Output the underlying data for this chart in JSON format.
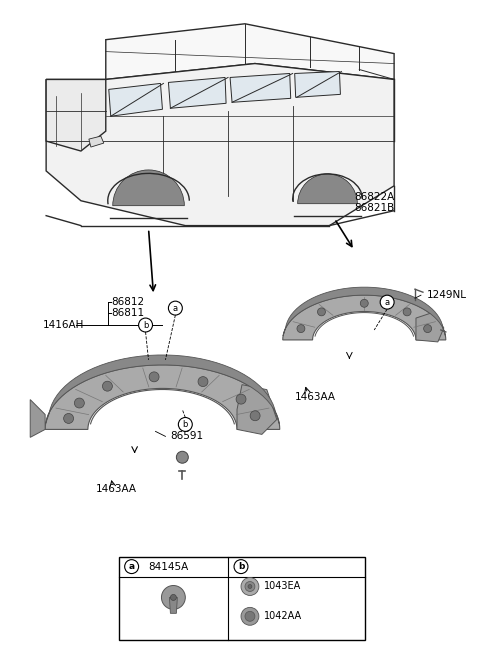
{
  "bg_color": "#ffffff",
  "fig_width": 4.8,
  "fig_height": 6.56,
  "dpi": 100,
  "labels": {
    "front_parts": [
      "86812",
      "86811"
    ],
    "front_part_bracket": "1416AH",
    "front_bolt": "86591",
    "front_clip": "1463AA",
    "rear_parts": [
      "86822A",
      "86821B"
    ],
    "rear_clip": "1463AA",
    "rear_screw": "1249NL",
    "legend_a_code": "84145A",
    "legend_b1": "1043EA",
    "legend_b2": "1042AA"
  },
  "colors": {
    "bg": "#ffffff",
    "car_line": "#2a2a2a",
    "guard_dark": "#909090",
    "guard_mid": "#b0b0b0",
    "guard_light": "#cccccc",
    "guard_edge": "#555555",
    "text": "#000000",
    "arrow": "#000000",
    "table_border": "#000000"
  }
}
